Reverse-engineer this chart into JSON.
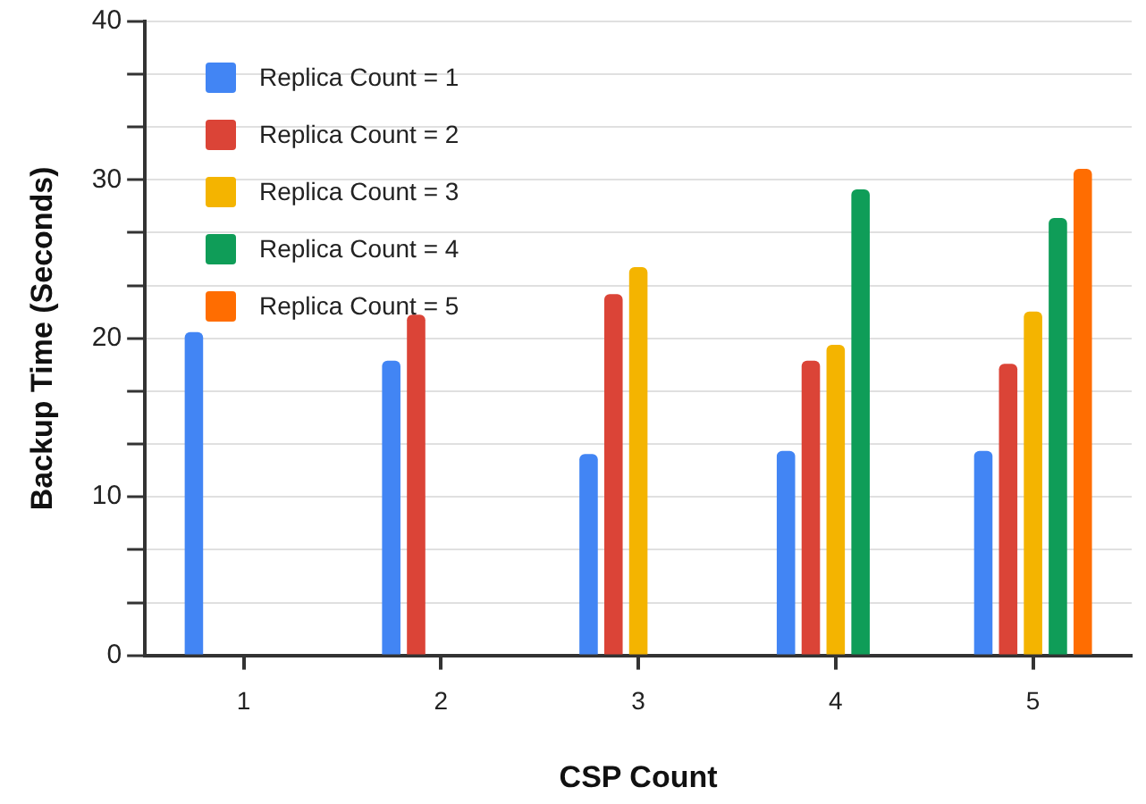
{
  "chart_data": {
    "type": "bar",
    "xlabel": "CSP Count",
    "ylabel": "Backup Time (Seconds)",
    "categories": [
      "1",
      "2",
      "3",
      "4",
      "5"
    ],
    "series": [
      {
        "name": "Replica Count = 1",
        "color": "#4285f4",
        "values": [
          20.4,
          18.6,
          12.7,
          12.9,
          12.9
        ]
      },
      {
        "name": "Replica Count = 2",
        "color": "#db4437",
        "values": [
          null,
          21.5,
          22.8,
          18.6,
          18.4
        ]
      },
      {
        "name": "Replica Count = 3",
        "color": "#f4b400",
        "values": [
          null,
          null,
          24.5,
          19.6,
          21.7
        ]
      },
      {
        "name": "Replica Count = 4",
        "color": "#0f9d58",
        "values": [
          null,
          null,
          null,
          29.4,
          27.6
        ]
      },
      {
        "name": "Replica Count = 5",
        "color": "#ff6d01",
        "values": [
          null,
          null,
          null,
          null,
          30.7
        ]
      }
    ],
    "ylim": [
      0,
      40
    ],
    "yticks": [
      0,
      {
        "value": 3.33,
        "label": null
      },
      {
        "value": 6.67,
        "label": null
      },
      10,
      {
        "value": 13.33,
        "label": null
      },
      {
        "value": 16.67,
        "label": null
      },
      20,
      {
        "value": 23.33,
        "label": null
      },
      {
        "value": 26.67,
        "label": null
      },
      30,
      {
        "value": 33.33,
        "label": null
      },
      {
        "value": 36.67,
        "label": null
      },
      40
    ],
    "grid": "y",
    "legend": "top left"
  }
}
